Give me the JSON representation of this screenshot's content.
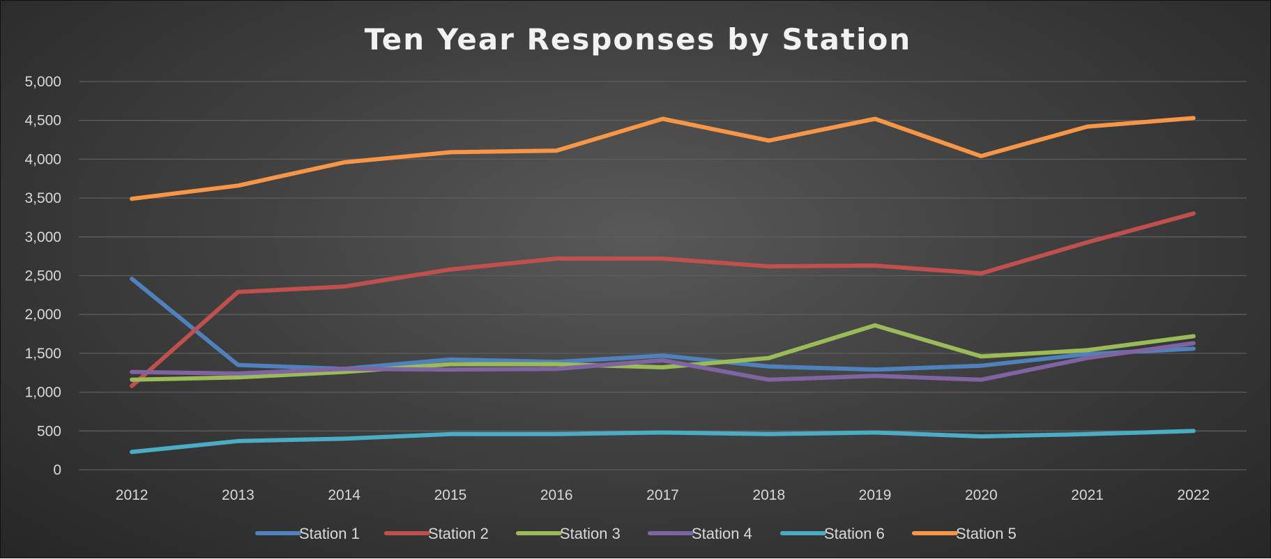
{
  "chart_data": {
    "type": "line",
    "title": "Ten Year Responses by Station",
    "xlabel": "",
    "ylabel": "",
    "categories": [
      "2012",
      "2013",
      "2014",
      "2015",
      "2016",
      "2017",
      "2018",
      "2019",
      "2020",
      "2021",
      "2022"
    ],
    "ylim": [
      0,
      5000
    ],
    "yticks": [
      0,
      500,
      1000,
      1500,
      2000,
      2500,
      3000,
      3500,
      4000,
      4500,
      5000
    ],
    "ytick_labels": [
      "0",
      "500",
      "1,000",
      "1,500",
      "2,000",
      "2,500",
      "3,000",
      "3,500",
      "4,000",
      "4,500",
      "5,000"
    ],
    "grid": true,
    "legend_position": "bottom",
    "series": [
      {
        "name": "Station 1",
        "color": "#4f81bd",
        "values": [
          2460,
          1350,
          1300,
          1420,
          1390,
          1470,
          1330,
          1290,
          1340,
          1490,
          1560
        ]
      },
      {
        "name": "Station 2",
        "color": "#c0504d",
        "values": [
          1080,
          2290,
          2360,
          2580,
          2720,
          2720,
          2620,
          2630,
          2530,
          2930,
          3300
        ]
      },
      {
        "name": "Station 3",
        "color": "#9bbb59",
        "values": [
          1160,
          1190,
          1260,
          1360,
          1360,
          1320,
          1440,
          1860,
          1460,
          1540,
          1720
        ]
      },
      {
        "name": "Station 4",
        "color": "#8064a2",
        "values": [
          1260,
          1240,
          1300,
          1290,
          1300,
          1410,
          1160,
          1210,
          1160,
          1440,
          1630
        ]
      },
      {
        "name": "Station 6",
        "color": "#4bacc6",
        "values": [
          230,
          370,
          400,
          460,
          460,
          480,
          460,
          480,
          430,
          460,
          500
        ]
      },
      {
        "name": "Station 5",
        "color": "#f79646",
        "values": [
          3490,
          3660,
          3960,
          4090,
          4110,
          4520,
          4240,
          4520,
          4040,
          4420,
          4530
        ]
      }
    ]
  }
}
